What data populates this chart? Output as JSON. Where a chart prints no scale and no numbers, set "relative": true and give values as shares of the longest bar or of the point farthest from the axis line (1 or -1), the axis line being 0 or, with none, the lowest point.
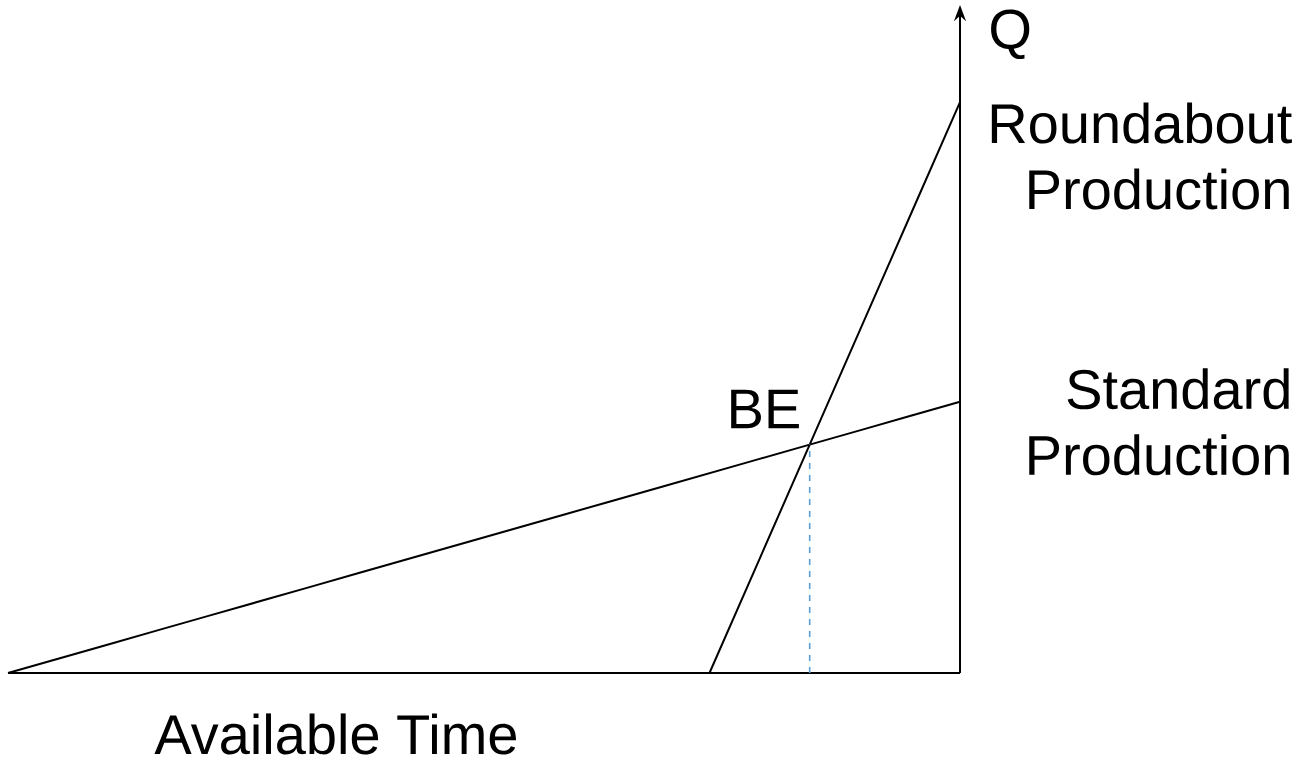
{
  "chart_data": {
    "type": "line",
    "relative": true,
    "xlabel": "Available Time",
    "ylabel": "Q",
    "categories": [
      null,
      null,
      null,
      null,
      null,
      null,
      null,
      null,
      null,
      null,
      null,
      null,
      null,
      null,
      null,
      null,
      null,
      null,
      null,
      null
    ],
    "series": [
      {
        "name": "Roundabout Production",
        "color": "#000000",
        "values": [
          null,
          null,
          null,
          null,
          null,
          null,
          null,
          null,
          null,
          null,
          null,
          null,
          null,
          null,
          0,
          0.2,
          0.4,
          0.6,
          0.8,
          1
        ]
      },
      {
        "name": "Standard Production",
        "color": "#000000",
        "values": [
          0,
          0.025,
          0.05,
          0.075,
          0.1,
          0.125,
          0.15,
          0.175,
          0.2,
          0.225,
          0.25,
          0.275,
          0.3,
          0.325,
          0.35,
          0.375,
          0.4,
          0.425,
          0.45,
          0.475
        ]
      }
    ],
    "annotations": [
      "BE"
    ]
  }
}
